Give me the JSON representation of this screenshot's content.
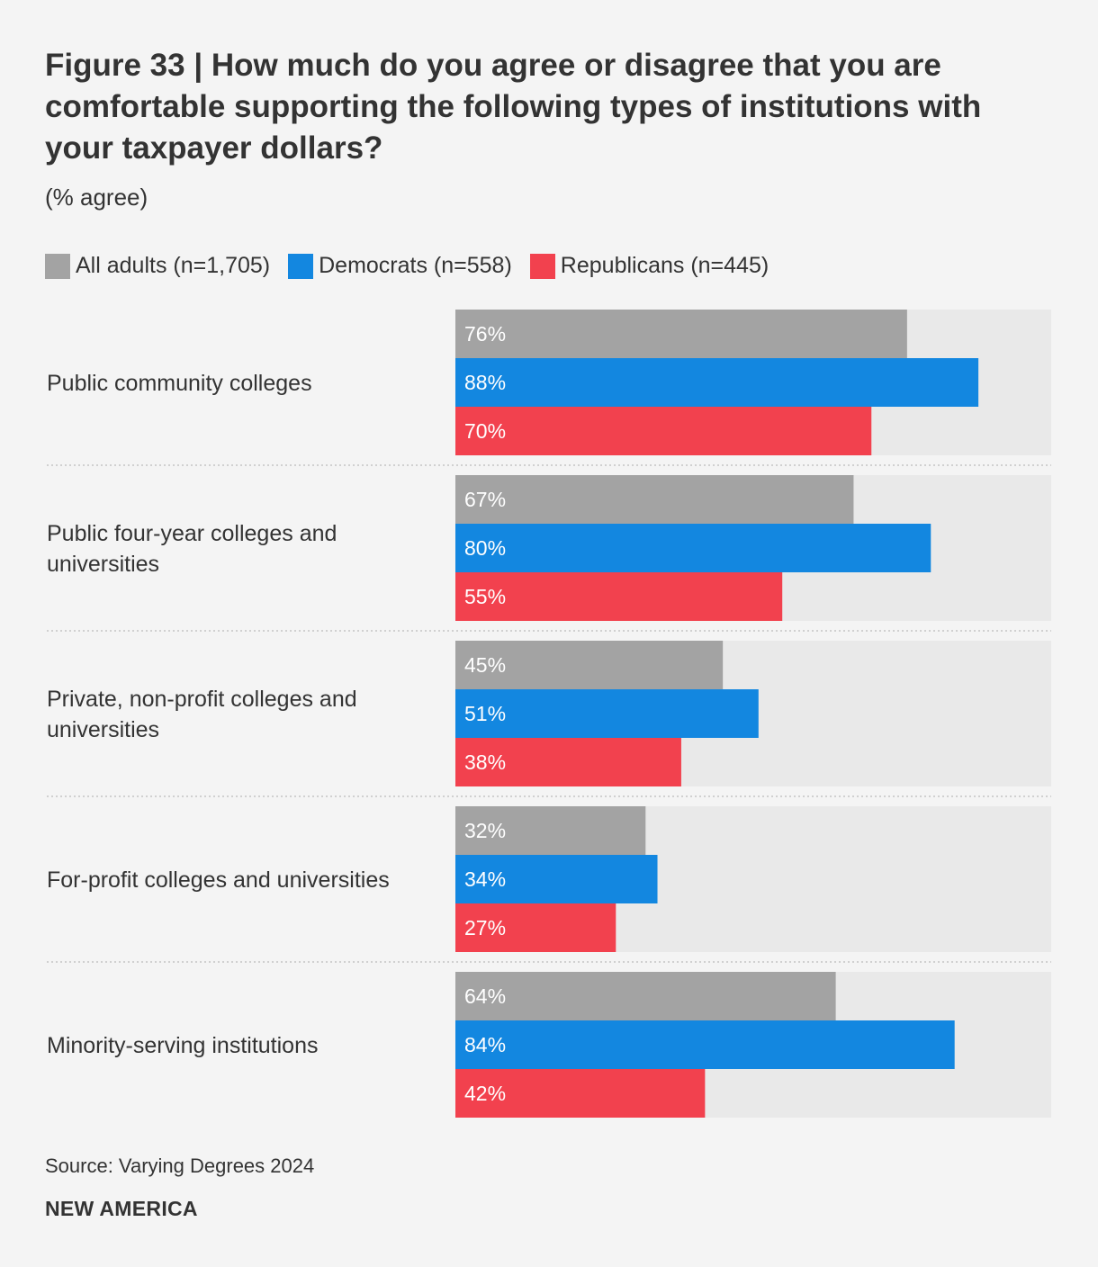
{
  "header": {
    "title": "Figure 33 | How much do you agree or disagree that you are comfortable supporting the following types of institutions with your taxpayer dollars?",
    "subtitle": "(% agree)"
  },
  "legend": [
    {
      "label": "All adults (n=1,705)",
      "color": "#a3a3a3"
    },
    {
      "label": "Democrats (n=558)",
      "color": "#1387e0"
    },
    {
      "label": "Republicans (n=445)",
      "color": "#f2414e"
    }
  ],
  "chart_data": {
    "type": "bar",
    "orientation": "horizontal",
    "title": "Figure 33 | How much do you agree or disagree that you are comfortable supporting the following types of institutions with your taxpayer dollars?",
    "subtitle": "(% agree)",
    "xlim": [
      0,
      100
    ],
    "grid": false,
    "legend_position": "top-left",
    "categories": [
      [
        "Public community colleges"
      ],
      [
        "Public four-year colleges and",
        "universities"
      ],
      [
        "Private, non-profit colleges and",
        "universities"
      ],
      [
        "For-profit colleges and universities"
      ],
      [
        "Minority-serving institutions"
      ]
    ],
    "series": [
      {
        "name": "All adults (n=1,705)",
        "color": "#a3a3a3",
        "values": [
          76,
          67,
          45,
          32,
          64
        ],
        "labels": [
          "76%",
          "67%",
          "45%",
          "32%",
          "64%"
        ]
      },
      {
        "name": "Democrats (n=558)",
        "color": "#1387e0",
        "values": [
          88,
          80,
          51,
          34,
          84
        ],
        "labels": [
          "88%",
          "80%",
          "51%",
          "34%",
          "84%"
        ]
      },
      {
        "name": "Republicans (n=445)",
        "color": "#f2414e",
        "values": [
          70,
          55,
          38,
          27,
          42
        ],
        "labels": [
          "70%",
          "55%",
          "38%",
          "27%",
          "42%"
        ]
      }
    ]
  },
  "footer": {
    "source": "Source: Varying Degrees 2024",
    "brand": "NEW AMERICA"
  }
}
